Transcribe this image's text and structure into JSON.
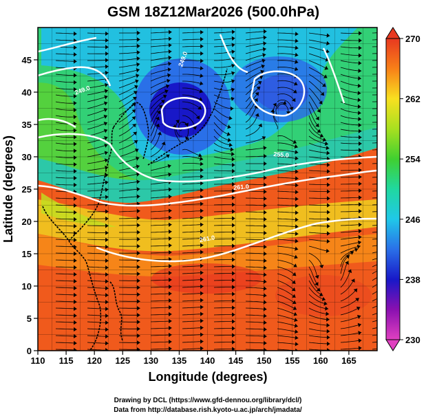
{
  "chart_data": {
    "type": "heatmap",
    "title": "GSM 18Z12Mar2026 (500.0hPa)",
    "xlabel": "Longitude (degrees)",
    "ylabel": "Latitude  (degrees)",
    "xlim": [
      110,
      170
    ],
    "ylim": [
      0,
      50
    ],
    "x_ticks": [
      "110",
      "115",
      "120",
      "125",
      "130",
      "135",
      "140",
      "145",
      "150",
      "155",
      "160",
      "165"
    ],
    "y_ticks": [
      "0",
      "5",
      "10",
      "15",
      "20",
      "25",
      "30",
      "35",
      "40",
      "45"
    ],
    "grid": true,
    "colorbar": {
      "position": "right",
      "min": 230,
      "max": 270,
      "ticks": [
        "230",
        "238",
        "246",
        "254",
        "262",
        "270"
      ]
    },
    "contour_labels": [
      "249.0",
      "249.0",
      "255.0",
      "261.0",
      "261.0"
    ],
    "overlays": [
      "temperature contours",
      "wind streamlines",
      "coastlines"
    ]
  },
  "credits": {
    "line1": "Drawing by DCL (https://www.gfd-dennou.org/library/dcl/)",
    "line2": "Data from http://database.rish.kyoto-u.ac.jp/arch/jmadata/"
  }
}
